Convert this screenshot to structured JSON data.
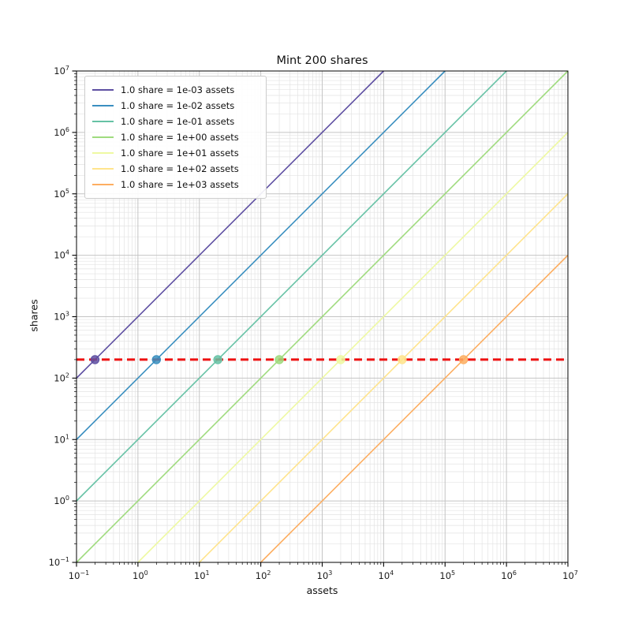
{
  "chart_data": {
    "type": "line",
    "title": "Mint 200 shares",
    "xlabel": "assets",
    "ylabel": "shares",
    "x_scale": "log",
    "y_scale": "log",
    "xlim": [
      0.1,
      10000000
    ],
    "ylim": [
      0.1,
      10000000
    ],
    "x_tick_exponents": [
      -1,
      0,
      1,
      2,
      3,
      4,
      5,
      6,
      7
    ],
    "y_tick_exponents": [
      -1,
      0,
      1,
      2,
      3,
      4,
      5,
      6,
      7
    ],
    "grid": "major+minor",
    "grid_major_color": "#c4c4c4",
    "grid_minor_color": "#e3e3e3",
    "legend_position": "upper-left",
    "series": [
      {
        "label": "1.0 share = 1e-03 assets",
        "assets_per_share": 0.001,
        "color": "#5e4fa2"
      },
      {
        "label": "1.0 share = 1e-02 assets",
        "assets_per_share": 0.01,
        "color": "#3a8fc0"
      },
      {
        "label": "1.0 share = 1e-01 assets",
        "assets_per_share": 0.1,
        "color": "#66c2a5"
      },
      {
        "label": "1.0 share = 1e+00 assets",
        "assets_per_share": 1,
        "color": "#9fdb7e"
      },
      {
        "label": "1.0 share = 1e+01 assets",
        "assets_per_share": 10,
        "color": "#eef9a2"
      },
      {
        "label": "1.0 share = 1e+02 assets",
        "assets_per_share": 100,
        "color": "#ffe48c"
      },
      {
        "label": "1.0 share = 1e+03 assets",
        "assets_per_share": 1000,
        "color": "#fdae61"
      }
    ],
    "target_line": {
      "shares": 200,
      "color": "#ee1111",
      "style": "dashed"
    },
    "markers": {
      "shares": 200,
      "points": [
        {
          "assets": 0.2,
          "shares": 200
        },
        {
          "assets": 2,
          "shares": 200
        },
        {
          "assets": 20,
          "shares": 200
        },
        {
          "assets": 200,
          "shares": 200
        },
        {
          "assets": 2000,
          "shares": 200
        },
        {
          "assets": 20000,
          "shares": 200
        },
        {
          "assets": 200000,
          "shares": 200
        }
      ]
    }
  }
}
